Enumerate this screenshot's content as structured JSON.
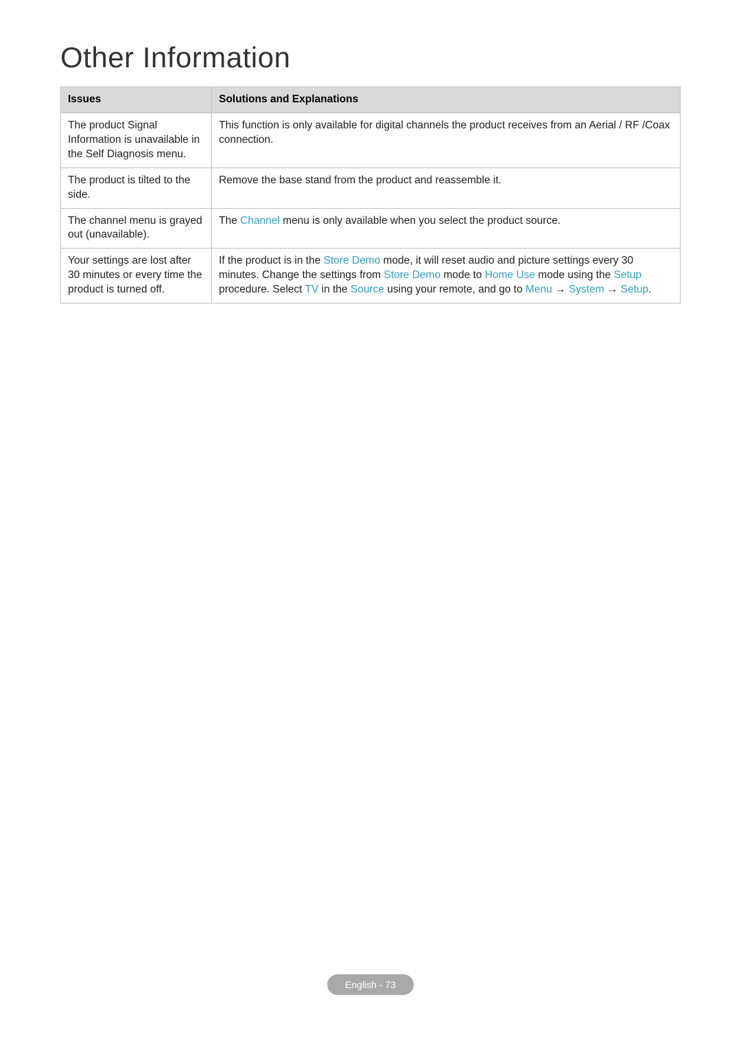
{
  "title": "Other Information",
  "table": {
    "headers": {
      "issues": "Issues",
      "solutions": "Solutions and Explanations"
    },
    "rows": [
      {
        "issue": "The product Signal Information is unavailable in the Self Diagnosis menu.",
        "solution_parts": [
          {
            "t": "This function is only available for digital channels the product receives from an Aerial / RF /Coax connection."
          }
        ]
      },
      {
        "issue": "The product is tilted to the side.",
        "solution_parts": [
          {
            "t": "Remove the base stand from the product and reassemble it."
          }
        ]
      },
      {
        "issue": "The channel menu is grayed out (unavailable).",
        "solution_parts": [
          {
            "t": "The "
          },
          {
            "t": "Channel",
            "kw": true
          },
          {
            "t": " menu is only available when you select the product source."
          }
        ]
      },
      {
        "issue": "Your settings are lost after 30 minutes or every time the product is turned off.",
        "solution_parts": [
          {
            "t": "If the product is in the "
          },
          {
            "t": "Store Demo",
            "kw": true
          },
          {
            "t": " mode, it will reset audio and picture settings every 30 minutes. Change the settings from "
          },
          {
            "t": "Store Demo",
            "kw": true
          },
          {
            "t": " mode to "
          },
          {
            "t": "Home Use",
            "kw": true
          },
          {
            "t": " mode using the "
          },
          {
            "t": "Setup",
            "kw": true
          },
          {
            "t": " procedure. Select "
          },
          {
            "t": "TV",
            "kw": true
          },
          {
            "t": " in the "
          },
          {
            "t": "Source",
            "kw": true
          },
          {
            "t": " using your remote, and go to "
          },
          {
            "t": "Menu",
            "kw": true
          },
          {
            "t": " → "
          },
          {
            "t": "System",
            "kw": true
          },
          {
            "t": " → "
          },
          {
            "t": "Setup",
            "kw": true
          },
          {
            "t": "."
          }
        ]
      }
    ]
  },
  "footer": {
    "text": "English - 73"
  },
  "colors": {
    "keyword": "#36a0c9",
    "header_bg": "#d9d9d9",
    "border": "#bfbfbf",
    "badge_bg": "#a9a9a9",
    "badge_fg": "#ffffff",
    "text": "#222222",
    "title": "#333333",
    "page_bg": "#ffffff"
  }
}
